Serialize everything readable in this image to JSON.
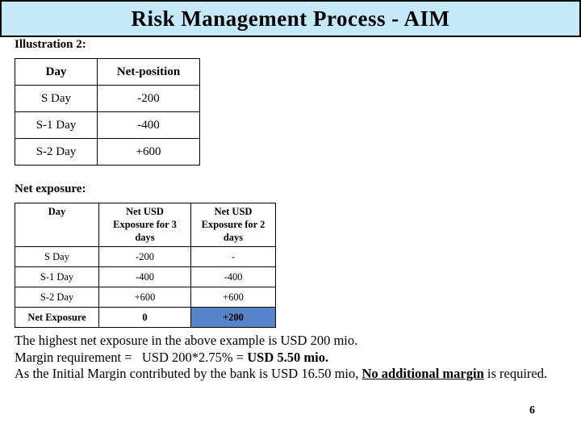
{
  "slide": {
    "title": "Risk Management Process - AIM",
    "page_number": "6"
  },
  "labels": {
    "illustration": "Illustration 2:",
    "net_exposure": "Net exposure:"
  },
  "tables": {
    "position_table": {
      "headers": [
        "Day",
        "Net-position"
      ],
      "rows": [
        [
          "S Day",
          "-200"
        ],
        [
          "S-1 Day",
          "-400"
        ],
        [
          "S-2 Day",
          "+600"
        ]
      ]
    },
    "exposure_table": {
      "headers": [
        "Day",
        "Net USD\nExposure for 3\ndays",
        "Net USD\nExposure for 2\ndays"
      ],
      "rows": [
        [
          "S Day",
          "-200",
          "-"
        ],
        [
          "S-1 Day",
          "-400",
          "-400"
        ],
        [
          "S-2 Day",
          "+600",
          "+600"
        ],
        [
          "Net Exposure",
          "0",
          "+200"
        ]
      ],
      "emphasis_row": 3,
      "highlight_cell": {
        "row": 3,
        "col": 2
      }
    }
  },
  "paragraph": {
    "line1": "The highest net exposure in the above example is USD 200 mio.",
    "line2_prefix": "Margin requirement =   USD 200*2.75% = ",
    "line2_bold": "USD 5.50 mio.",
    "line3_prefix": "As the Initial Margin contributed by the bank is USD 16.50 mio, ",
    "line3_emphasis": "No additional margin",
    "line3_suffix": " is required."
  },
  "colors": {
    "title_bar_bg": "#C6E9FA",
    "highlight_cell_bg": "#5585C8",
    "border": "#000000"
  }
}
